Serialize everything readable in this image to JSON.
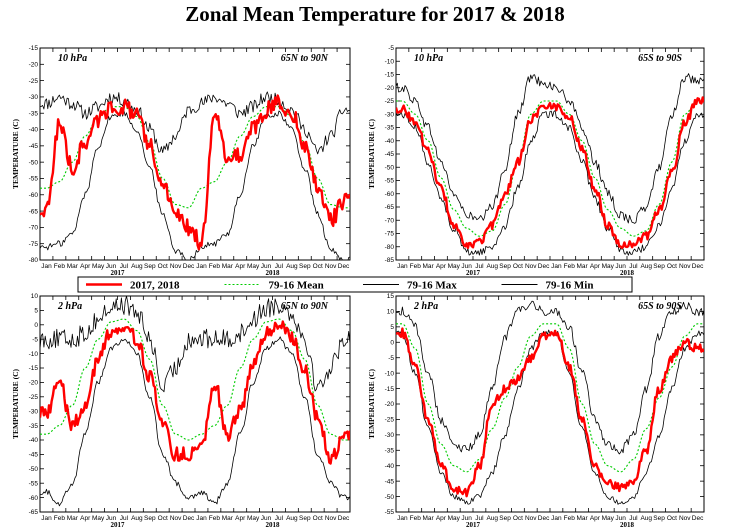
{
  "title": "Zonal Mean Temperature for 2017 & 2018",
  "legend": [
    {
      "label": "2017, 2018",
      "color": "#ff0000",
      "style": "thick"
    },
    {
      "label": "79-16 Mean",
      "color": "#00cc00",
      "style": "dotted"
    },
    {
      "label": "79-16 Max",
      "color": "#000000",
      "style": "thin"
    },
    {
      "label": "79-16 Min",
      "color": "#000000",
      "style": "thin"
    }
  ],
  "colors": {
    "observed": "#ff0000",
    "mean": "#00cc00",
    "max": "#000000",
    "min": "#000000"
  },
  "chart_data": [
    {
      "type": "line",
      "level": "10 hPa",
      "region": "65N to 90N",
      "ylabel": "TEMPERATURE (C)",
      "ylim": [
        -80,
        -15
      ],
      "yticks": [
        -80,
        -75,
        -70,
        -65,
        -60,
        -55,
        -50,
        -45,
        -40,
        -35,
        -30,
        -25,
        -20,
        -15
      ],
      "xticks": [
        "Jan",
        "Feb",
        "Mar",
        "Apr",
        "May",
        "Jun",
        "Jul",
        "Aug",
        "Sep",
        "Oct",
        "Nov",
        "Dec",
        "Jan",
        "Feb",
        "Mar",
        "Apr",
        "May",
        "Jun",
        "Jul",
        "Aug",
        "Sep",
        "Oct",
        "Nov",
        "Dec"
      ],
      "year_labels": [
        "2017",
        "2018"
      ],
      "series": [
        {
          "name": "2017, 2018",
          "values": [
            -65,
            -38,
            -52,
            -44,
            -37,
            -33,
            -33,
            -36,
            -45,
            -57,
            -66,
            -70,
            -75,
            -35,
            -48,
            -48,
            -40,
            -34,
            -32,
            -35,
            -45,
            -57,
            -68,
            -62
          ]
        },
        {
          "name": "79-16 Mean",
          "values": [
            -58,
            -56,
            -50,
            -42,
            -36,
            -33,
            -33,
            -36,
            -44,
            -55,
            -63,
            -64,
            -58,
            -56,
            -50,
            -42,
            -36,
            -33,
            -33,
            -36,
            -44,
            -55,
            -63,
            -64
          ]
        },
        {
          "name": "79-16 Max",
          "values": [
            -32,
            -30,
            -32,
            -35,
            -33,
            -30,
            -31,
            -34,
            -40,
            -47,
            -42,
            -34,
            -32,
            -30,
            -32,
            -35,
            -33,
            -30,
            -31,
            -34,
            -40,
            -47,
            -42,
            -34
          ]
        },
        {
          "name": "79-16 Min",
          "values": [
            -76,
            -75,
            -72,
            -60,
            -45,
            -36,
            -35,
            -40,
            -52,
            -66,
            -77,
            -80,
            -76,
            -75,
            -72,
            -60,
            -45,
            -36,
            -35,
            -40,
            -52,
            -66,
            -77,
            -80
          ]
        }
      ]
    },
    {
      "type": "line",
      "level": "10 hPa",
      "region": "65S to 90S",
      "ylabel": "TEMPERATURE (C)",
      "ylim": [
        -85,
        -5
      ],
      "yticks": [
        -85,
        -80,
        -75,
        -70,
        -65,
        -60,
        -55,
        -50,
        -45,
        -40,
        -35,
        -30,
        -25,
        -20,
        -15,
        -10,
        -5
      ],
      "xticks": [
        "Jan",
        "Feb",
        "Mar",
        "Apr",
        "May",
        "Jun",
        "Jul",
        "Aug",
        "Sep",
        "Oct",
        "Nov",
        "Dec",
        "Jan",
        "Feb",
        "Mar",
        "Apr",
        "May",
        "Jun",
        "Jul",
        "Aug",
        "Sep",
        "Oct",
        "Nov",
        "Dec"
      ],
      "year_labels": [
        "2017",
        "2018"
      ],
      "series": [
        {
          "name": "2017, 2018",
          "values": [
            -28,
            -33,
            -44,
            -58,
            -72,
            -80,
            -78,
            -72,
            -60,
            -48,
            -32,
            -27,
            -27,
            -31,
            -43,
            -58,
            -72,
            -79,
            -79,
            -76,
            -66,
            -52,
            -33,
            -25
          ]
        },
        {
          "name": "79-16 Mean",
          "values": [
            -25,
            -30,
            -40,
            -54,
            -66,
            -73,
            -76,
            -74,
            -64,
            -48,
            -30,
            -25,
            -25,
            -30,
            -40,
            -54,
            -66,
            -73,
            -76,
            -74,
            -64,
            -48,
            -30,
            -25
          ]
        },
        {
          "name": "79-16 Max",
          "values": [
            -20,
            -25,
            -35,
            -48,
            -60,
            -68,
            -70,
            -65,
            -50,
            -30,
            -16,
            -18,
            -20,
            -25,
            -35,
            -48,
            -60,
            -68,
            -70,
            -65,
            -50,
            -30,
            -16,
            -18
          ]
        },
        {
          "name": "79-16 Min",
          "values": [
            -30,
            -35,
            -48,
            -62,
            -73,
            -82,
            -82,
            -80,
            -72,
            -58,
            -40,
            -30,
            -30,
            -35,
            -48,
            -62,
            -73,
            -82,
            -82,
            -80,
            -72,
            -58,
            -40,
            -30
          ]
        }
      ]
    },
    {
      "type": "line",
      "level": "2 hPa",
      "region": "65N to 90N",
      "ylabel": "TEMPERATURE (C)",
      "ylim": [
        -65,
        10
      ],
      "yticks": [
        -65,
        -60,
        -55,
        -50,
        -45,
        -40,
        -35,
        -30,
        -25,
        -20,
        -15,
        -10,
        -5,
        0,
        5,
        10
      ],
      "xticks": [
        "Jan",
        "Feb",
        "Mar",
        "Apr",
        "May",
        "Jun",
        "Jul",
        "Aug",
        "Sep",
        "Oct",
        "Nov",
        "Dec",
        "Jan",
        "Feb",
        "Mar",
        "Apr",
        "May",
        "Jun",
        "Jul",
        "Aug",
        "Sep",
        "Oct",
        "Nov",
        "Dec"
      ],
      "year_labels": [
        "2017",
        "2018"
      ],
      "series": [
        {
          "name": "2017, 2018",
          "values": [
            -30,
            -20,
            -35,
            -28,
            -12,
            -2,
            0,
            -5,
            -18,
            -35,
            -45,
            -45,
            -42,
            -20,
            -38,
            -30,
            -14,
            -3,
            0,
            -4,
            -16,
            -32,
            -47,
            -38
          ]
        },
        {
          "name": "79-16 Mean",
          "values": [
            -38,
            -35,
            -28,
            -15,
            -5,
            1,
            2,
            -2,
            -12,
            -28,
            -38,
            -40,
            -38,
            -35,
            -28,
            -15,
            -5,
            1,
            2,
            -2,
            -12,
            -28,
            -38,
            -40
          ]
        },
        {
          "name": "79-16 Max",
          "values": [
            -5,
            -5,
            -5,
            -3,
            2,
            6,
            7,
            4,
            -5,
            -22,
            -15,
            -5,
            -5,
            -5,
            -5,
            -3,
            2,
            6,
            7,
            4,
            -5,
            -22,
            -15,
            -5
          ]
        },
        {
          "name": "79-16 Min",
          "values": [
            -58,
            -62,
            -55,
            -38,
            -20,
            -8,
            -5,
            -10,
            -25,
            -45,
            -55,
            -60,
            -58,
            -62,
            -55,
            -38,
            -20,
            -8,
            -5,
            -10,
            -25,
            -45,
            -55,
            -60
          ]
        }
      ]
    },
    {
      "type": "line",
      "level": "2 hPa",
      "region": "65S to 90S",
      "ylabel": "TEMPERATURE (C)",
      "ylim": [
        -55,
        15
      ],
      "yticks": [
        -55,
        -50,
        -45,
        -40,
        -35,
        -30,
        -25,
        -20,
        -15,
        -10,
        -5,
        0,
        5,
        10,
        15
      ],
      "xticks": [
        "Jan",
        "Feb",
        "Mar",
        "Apr",
        "May",
        "Jun",
        "Jul",
        "Aug",
        "Sep",
        "Oct",
        "Nov",
        "Dec",
        "Jan",
        "Feb",
        "Mar",
        "Apr",
        "May",
        "Jun",
        "Jul",
        "Aug",
        "Sep",
        "Oct",
        "Nov",
        "Dec"
      ],
      "year_labels": [
        "2017",
        "2018"
      ],
      "series": [
        {
          "name": "2017, 2018",
          "values": [
            3,
            -8,
            -25,
            -40,
            -48,
            -49,
            -40,
            -20,
            -15,
            -12,
            -5,
            2,
            3,
            -8,
            -25,
            -40,
            -46,
            -47,
            -45,
            -35,
            -15,
            -5,
            0,
            -2
          ]
        },
        {
          "name": "79-16 Mean",
          "values": [
            6,
            -2,
            -20,
            -33,
            -40,
            -42,
            -38,
            -28,
            -18,
            -8,
            2,
            6,
            6,
            -2,
            -20,
            -33,
            -40,
            -42,
            -38,
            -28,
            -18,
            -8,
            2,
            6
          ]
        },
        {
          "name": "79-16 Max",
          "values": [
            10,
            5,
            -10,
            -25,
            -33,
            -35,
            -30,
            -15,
            2,
            10,
            12,
            10,
            10,
            5,
            -10,
            -25,
            -33,
            -35,
            -30,
            -15,
            2,
            10,
            12,
            10
          ]
        },
        {
          "name": "79-16 Min",
          "values": [
            3,
            -10,
            -28,
            -42,
            -50,
            -52,
            -50,
            -42,
            -30,
            -15,
            -2,
            3,
            3,
            -10,
            -28,
            -42,
            -50,
            -52,
            -50,
            -42,
            -30,
            -15,
            -2,
            3
          ]
        }
      ]
    }
  ]
}
